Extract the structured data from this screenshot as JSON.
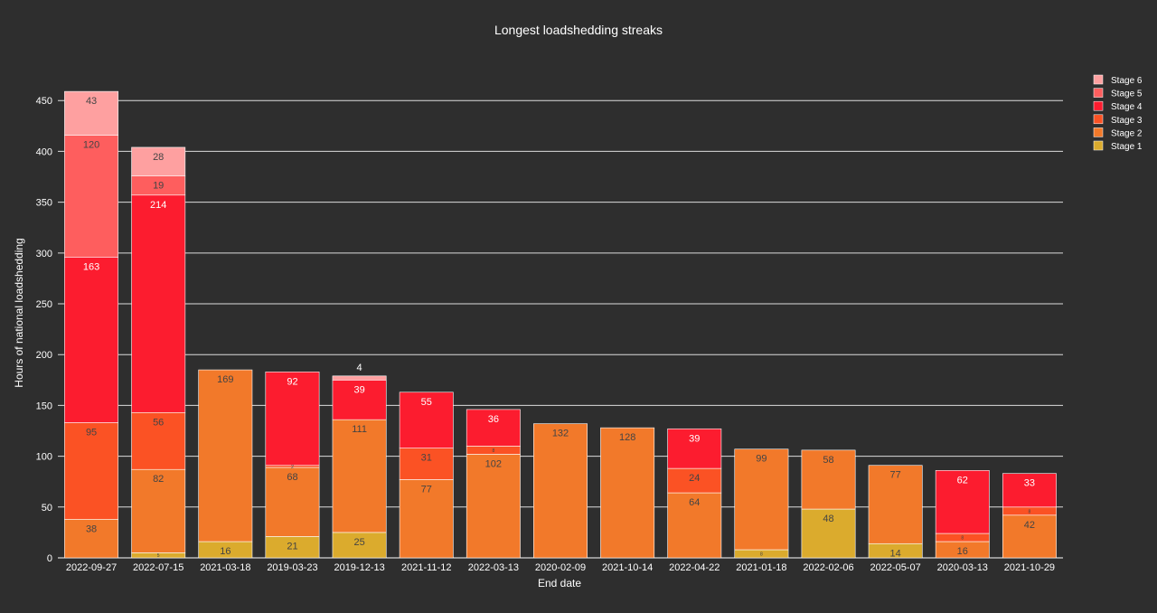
{
  "chart_data": {
    "type": "bar",
    "stacked": true,
    "title": "Longest loadshedding streaks",
    "xlabel": "End date",
    "ylabel": "Hours of national loadshedding",
    "ylim": [
      0,
      460
    ],
    "yticks": [
      0,
      50,
      100,
      150,
      200,
      250,
      300,
      350,
      400,
      450
    ],
    "grid": true,
    "legend_position": "top-right",
    "categories": [
      "2022-09-27",
      "2022-07-15",
      "2021-03-18",
      "2019-03-23",
      "2019-12-13",
      "2021-11-12",
      "2022-03-13",
      "2020-02-09",
      "2021-10-14",
      "2022-04-22",
      "2021-01-18",
      "2022-02-06",
      "2022-05-07",
      "2020-03-13",
      "2021-10-29"
    ],
    "series": [
      {
        "name": "Stage 1",
        "color": "#dbab2d",
        "values": [
          0,
          5,
          16,
          21,
          25,
          0,
          0,
          0,
          0,
          0,
          8,
          48,
          14,
          0,
          0
        ]
      },
      {
        "name": "Stage 2",
        "color": "#f2792a",
        "values": [
          38,
          82,
          169,
          68,
          111,
          77,
          102,
          132,
          128,
          64,
          99,
          58,
          77,
          16,
          42
        ]
      },
      {
        "name": "Stage 3",
        "color": "#fb5224",
        "values": [
          95,
          56,
          0,
          2,
          0,
          31,
          8,
          0,
          0,
          24,
          0,
          0,
          0,
          8,
          8
        ]
      },
      {
        "name": "Stage 4",
        "color": "#fc1c2f",
        "values": [
          163,
          214,
          0,
          92,
          39,
          55,
          36,
          0,
          0,
          39,
          0,
          0,
          0,
          62,
          33
        ]
      },
      {
        "name": "Stage 5",
        "color": "#fe5e5e",
        "values": [
          120,
          19,
          0,
          0,
          0,
          0,
          0,
          0,
          0,
          0,
          0,
          0,
          0,
          0,
          0
        ]
      },
      {
        "name": "Stage 6",
        "color": "#fea0a0",
        "values": [
          43,
          28,
          0,
          0,
          4,
          0,
          0,
          0,
          0,
          0,
          0,
          0,
          0,
          0,
          0
        ]
      }
    ]
  }
}
